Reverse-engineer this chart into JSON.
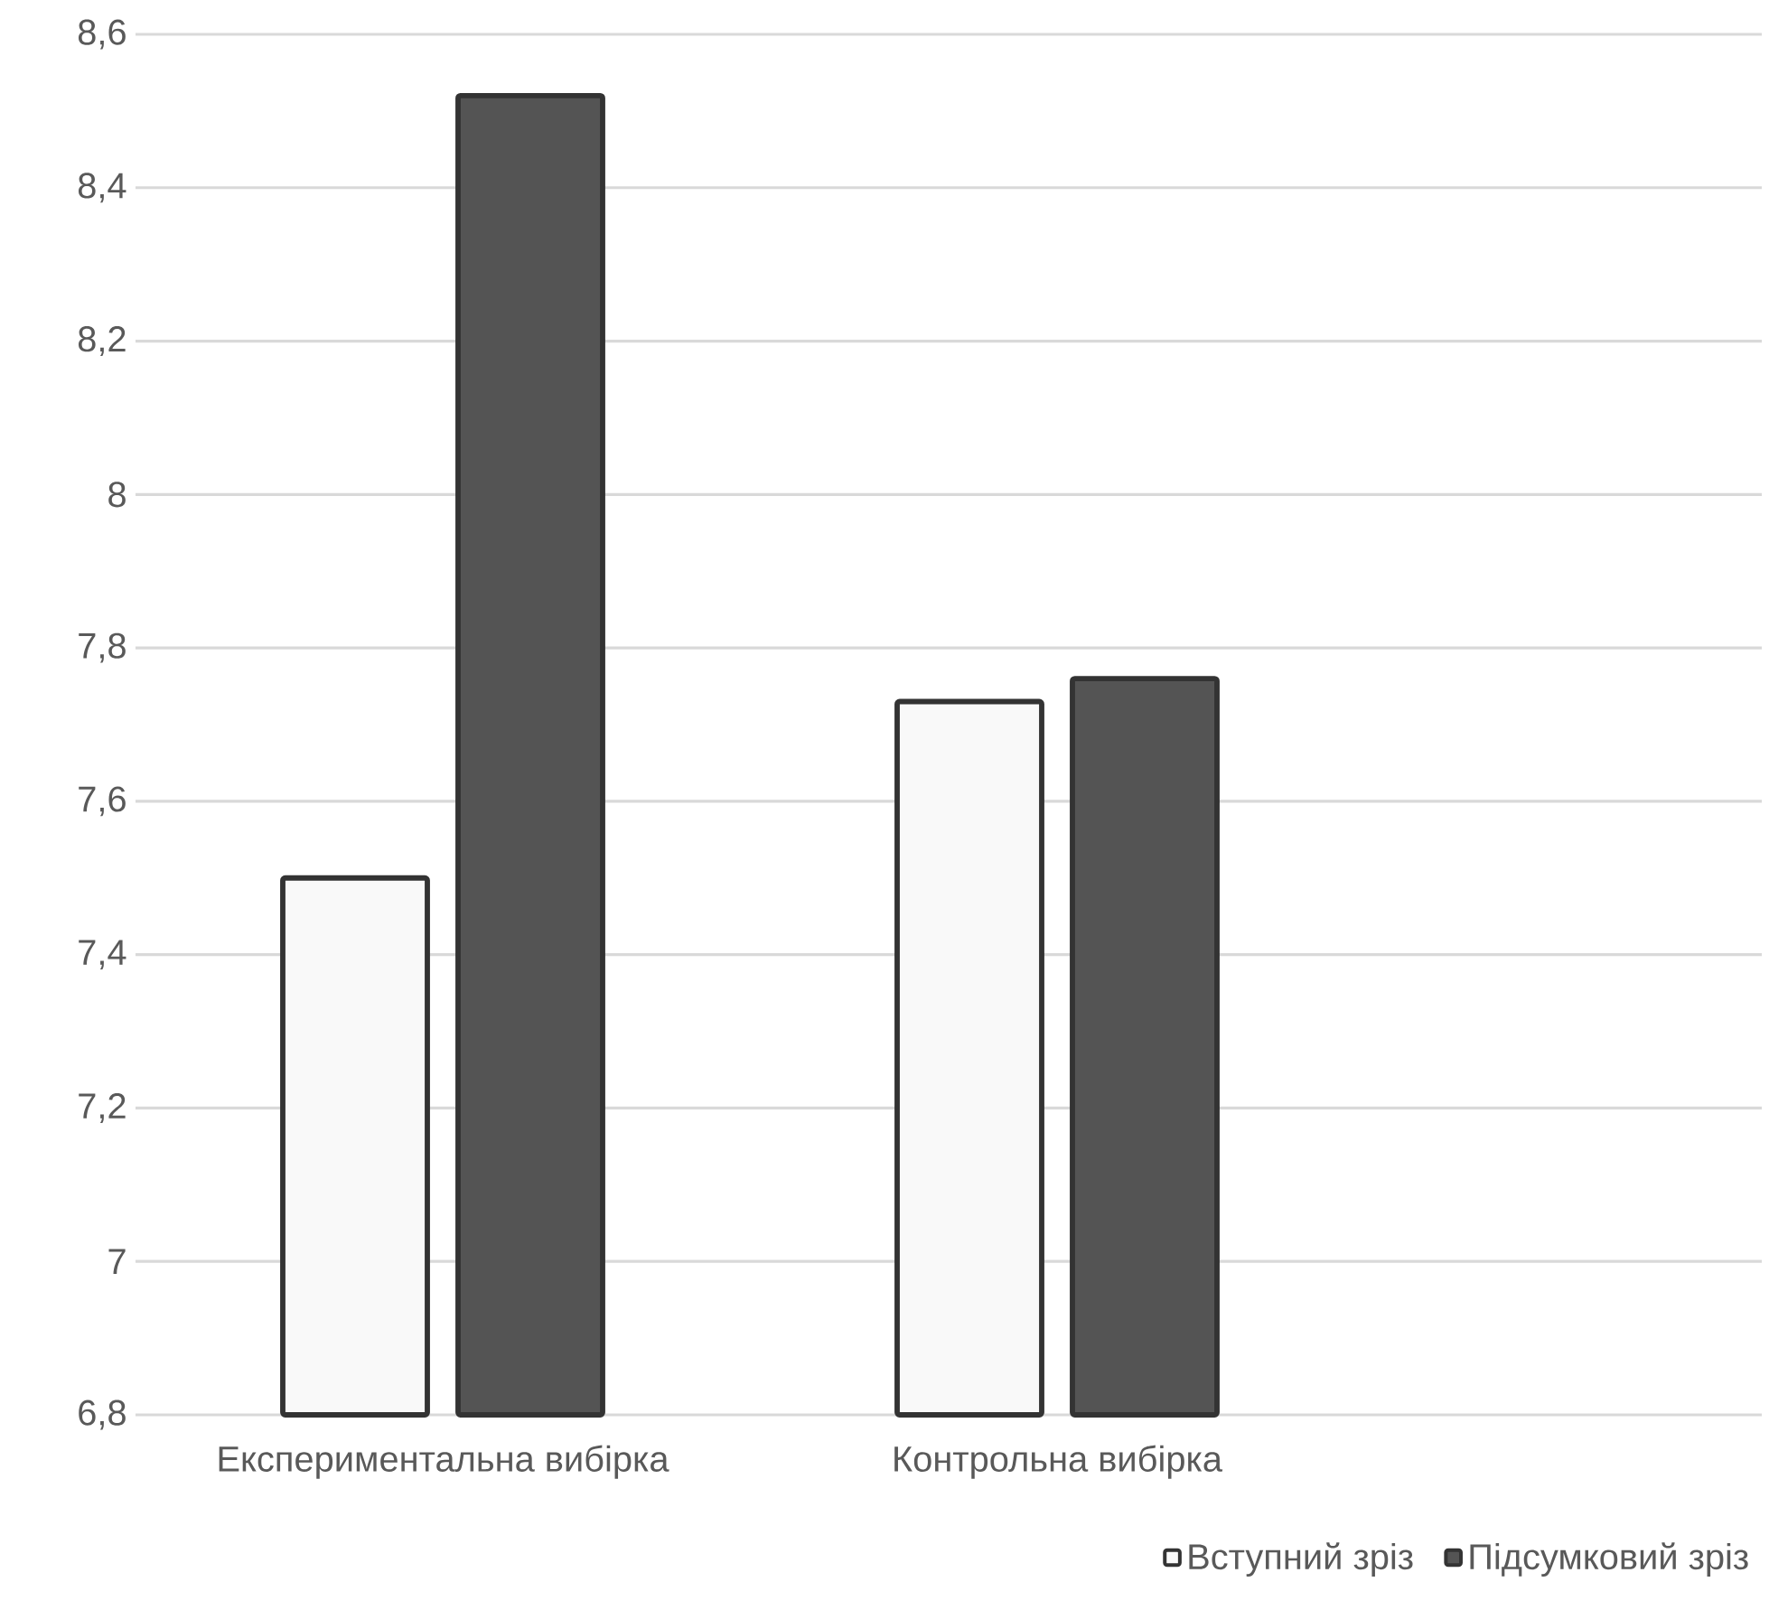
{
  "chart_data": {
    "type": "bar",
    "categories": [
      "Експериментальна вибірка",
      "Контрольна вибірка"
    ],
    "series": [
      {
        "name": "Вступний зріз",
        "color": "#f9f9f9",
        "values": [
          7.5,
          7.73
        ]
      },
      {
        "name": "Підсумковий зріз",
        "color": "#545454",
        "values": [
          8.52,
          7.76
        ]
      }
    ],
    "ylim": [
      6.8,
      8.6
    ],
    "yticks": [
      {
        "value": 6.8,
        "label": "6,8"
      },
      {
        "value": 7.0,
        "label": "7"
      },
      {
        "value": 7.2,
        "label": "7,2"
      },
      {
        "value": 7.4,
        "label": "7,4"
      },
      {
        "value": 7.6,
        "label": "7,6"
      },
      {
        "value": 7.8,
        "label": "7,8"
      },
      {
        "value": 8.0,
        "label": "8"
      },
      {
        "value": 8.2,
        "label": "8,2"
      },
      {
        "value": 8.4,
        "label": "8,4"
      },
      {
        "value": 8.6,
        "label": "8,6"
      }
    ],
    "grid": "y",
    "legend": "bottom right"
  }
}
